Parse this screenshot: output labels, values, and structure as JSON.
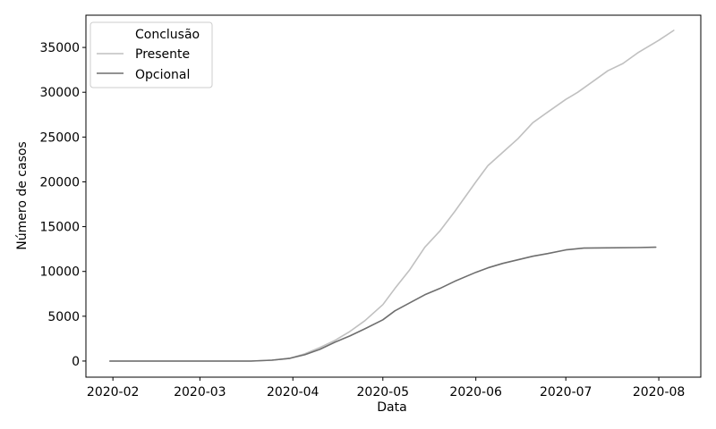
{
  "chart_data": {
    "type": "line",
    "xlabel": "Data",
    "ylabel": "Número de casos",
    "xlim": [
      "2020-01-23",
      "2020-08-15"
    ],
    "ylim": [
      -1800,
      38600
    ],
    "x_ticks": [
      "2020-02-01",
      "2020-03-01",
      "2020-04-01",
      "2020-05-01",
      "2020-06-01",
      "2020-07-01",
      "2020-08-01"
    ],
    "x_tick_labels": [
      "2020-02",
      "2020-03",
      "2020-04",
      "2020-05",
      "2020-06",
      "2020-07",
      "2020-08"
    ],
    "y_ticks": [
      0,
      5000,
      10000,
      15000,
      20000,
      25000,
      30000,
      35000
    ],
    "y_tick_labels": [
      "0",
      "5000",
      "10000",
      "15000",
      "20000",
      "25000",
      "30000",
      "35000"
    ],
    "grid": false,
    "legend": {
      "title": "Conclusão",
      "position": "top-left"
    },
    "series": [
      {
        "name": "Presente",
        "color": "#c0c0c0",
        "points": [
          [
            "2020-01-31",
            0
          ],
          [
            "2020-02-15",
            0
          ],
          [
            "2020-03-01",
            0
          ],
          [
            "2020-03-18",
            0
          ],
          [
            "2020-03-25",
            100
          ],
          [
            "2020-03-31",
            300
          ],
          [
            "2020-04-05",
            800
          ],
          [
            "2020-04-10",
            1500
          ],
          [
            "2020-04-15",
            2300
          ],
          [
            "2020-04-20",
            3300
          ],
          [
            "2020-04-25",
            4500
          ],
          [
            "2020-05-01",
            6300
          ],
          [
            "2020-05-05",
            8100
          ],
          [
            "2020-05-10",
            10200
          ],
          [
            "2020-05-15",
            12700
          ],
          [
            "2020-05-20",
            14500
          ],
          [
            "2020-05-25",
            16700
          ],
          [
            "2020-06-01",
            20000
          ],
          [
            "2020-06-05",
            21800
          ],
          [
            "2020-06-10",
            23300
          ],
          [
            "2020-06-15",
            24800
          ],
          [
            "2020-06-20",
            26600
          ],
          [
            "2020-06-25",
            27800
          ],
          [
            "2020-07-01",
            29200
          ],
          [
            "2020-07-05",
            30000
          ],
          [
            "2020-07-10",
            31200
          ],
          [
            "2020-07-15",
            32400
          ],
          [
            "2020-07-20",
            33200
          ],
          [
            "2020-07-25",
            34400
          ],
          [
            "2020-08-01",
            35800
          ],
          [
            "2020-08-06",
            36900
          ]
        ]
      },
      {
        "name": "Opcional",
        "color": "#6e6e6e",
        "points": [
          [
            "2020-01-31",
            0
          ],
          [
            "2020-02-15",
            0
          ],
          [
            "2020-03-01",
            0
          ],
          [
            "2020-03-18",
            0
          ],
          [
            "2020-03-25",
            100
          ],
          [
            "2020-03-31",
            300
          ],
          [
            "2020-04-05",
            700
          ],
          [
            "2020-04-10",
            1300
          ],
          [
            "2020-04-15",
            2100
          ],
          [
            "2020-04-20",
            2800
          ],
          [
            "2020-04-25",
            3600
          ],
          [
            "2020-05-01",
            4600
          ],
          [
            "2020-05-05",
            5600
          ],
          [
            "2020-05-10",
            6500
          ],
          [
            "2020-05-15",
            7400
          ],
          [
            "2020-05-20",
            8100
          ],
          [
            "2020-05-25",
            8900
          ],
          [
            "2020-06-01",
            9900
          ],
          [
            "2020-06-05",
            10400
          ],
          [
            "2020-06-10",
            10900
          ],
          [
            "2020-06-15",
            11300
          ],
          [
            "2020-06-20",
            11700
          ],
          [
            "2020-06-25",
            12000
          ],
          [
            "2020-07-01",
            12400
          ],
          [
            "2020-07-07",
            12600
          ],
          [
            "2020-07-15",
            12630
          ],
          [
            "2020-07-25",
            12660
          ],
          [
            "2020-07-31",
            12700
          ]
        ]
      }
    ]
  }
}
